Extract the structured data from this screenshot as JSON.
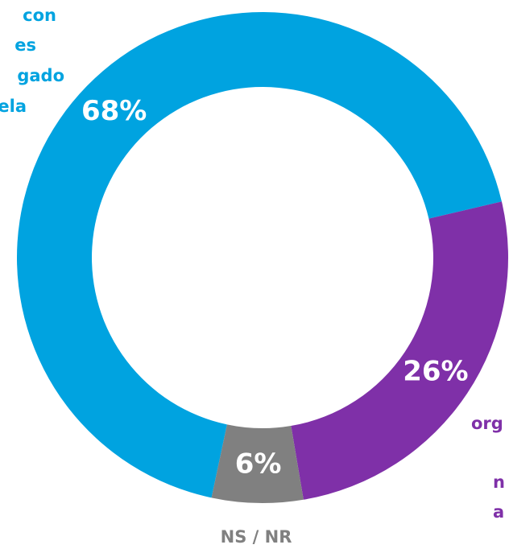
{
  "chart_data": {
    "type": "donut",
    "categories": [
      [
        "con",
        "es",
        "gado",
        "ela"
      ],
      [
        "org",
        "n",
        "a"
      ],
      [
        "NS / NR"
      ]
    ],
    "values": [
      68,
      26,
      6
    ],
    "value_labels": [
      "68%",
      "26%",
      "6%"
    ],
    "colors": [
      "#00a3e0",
      "#7f30a8",
      "#808080"
    ]
  }
}
